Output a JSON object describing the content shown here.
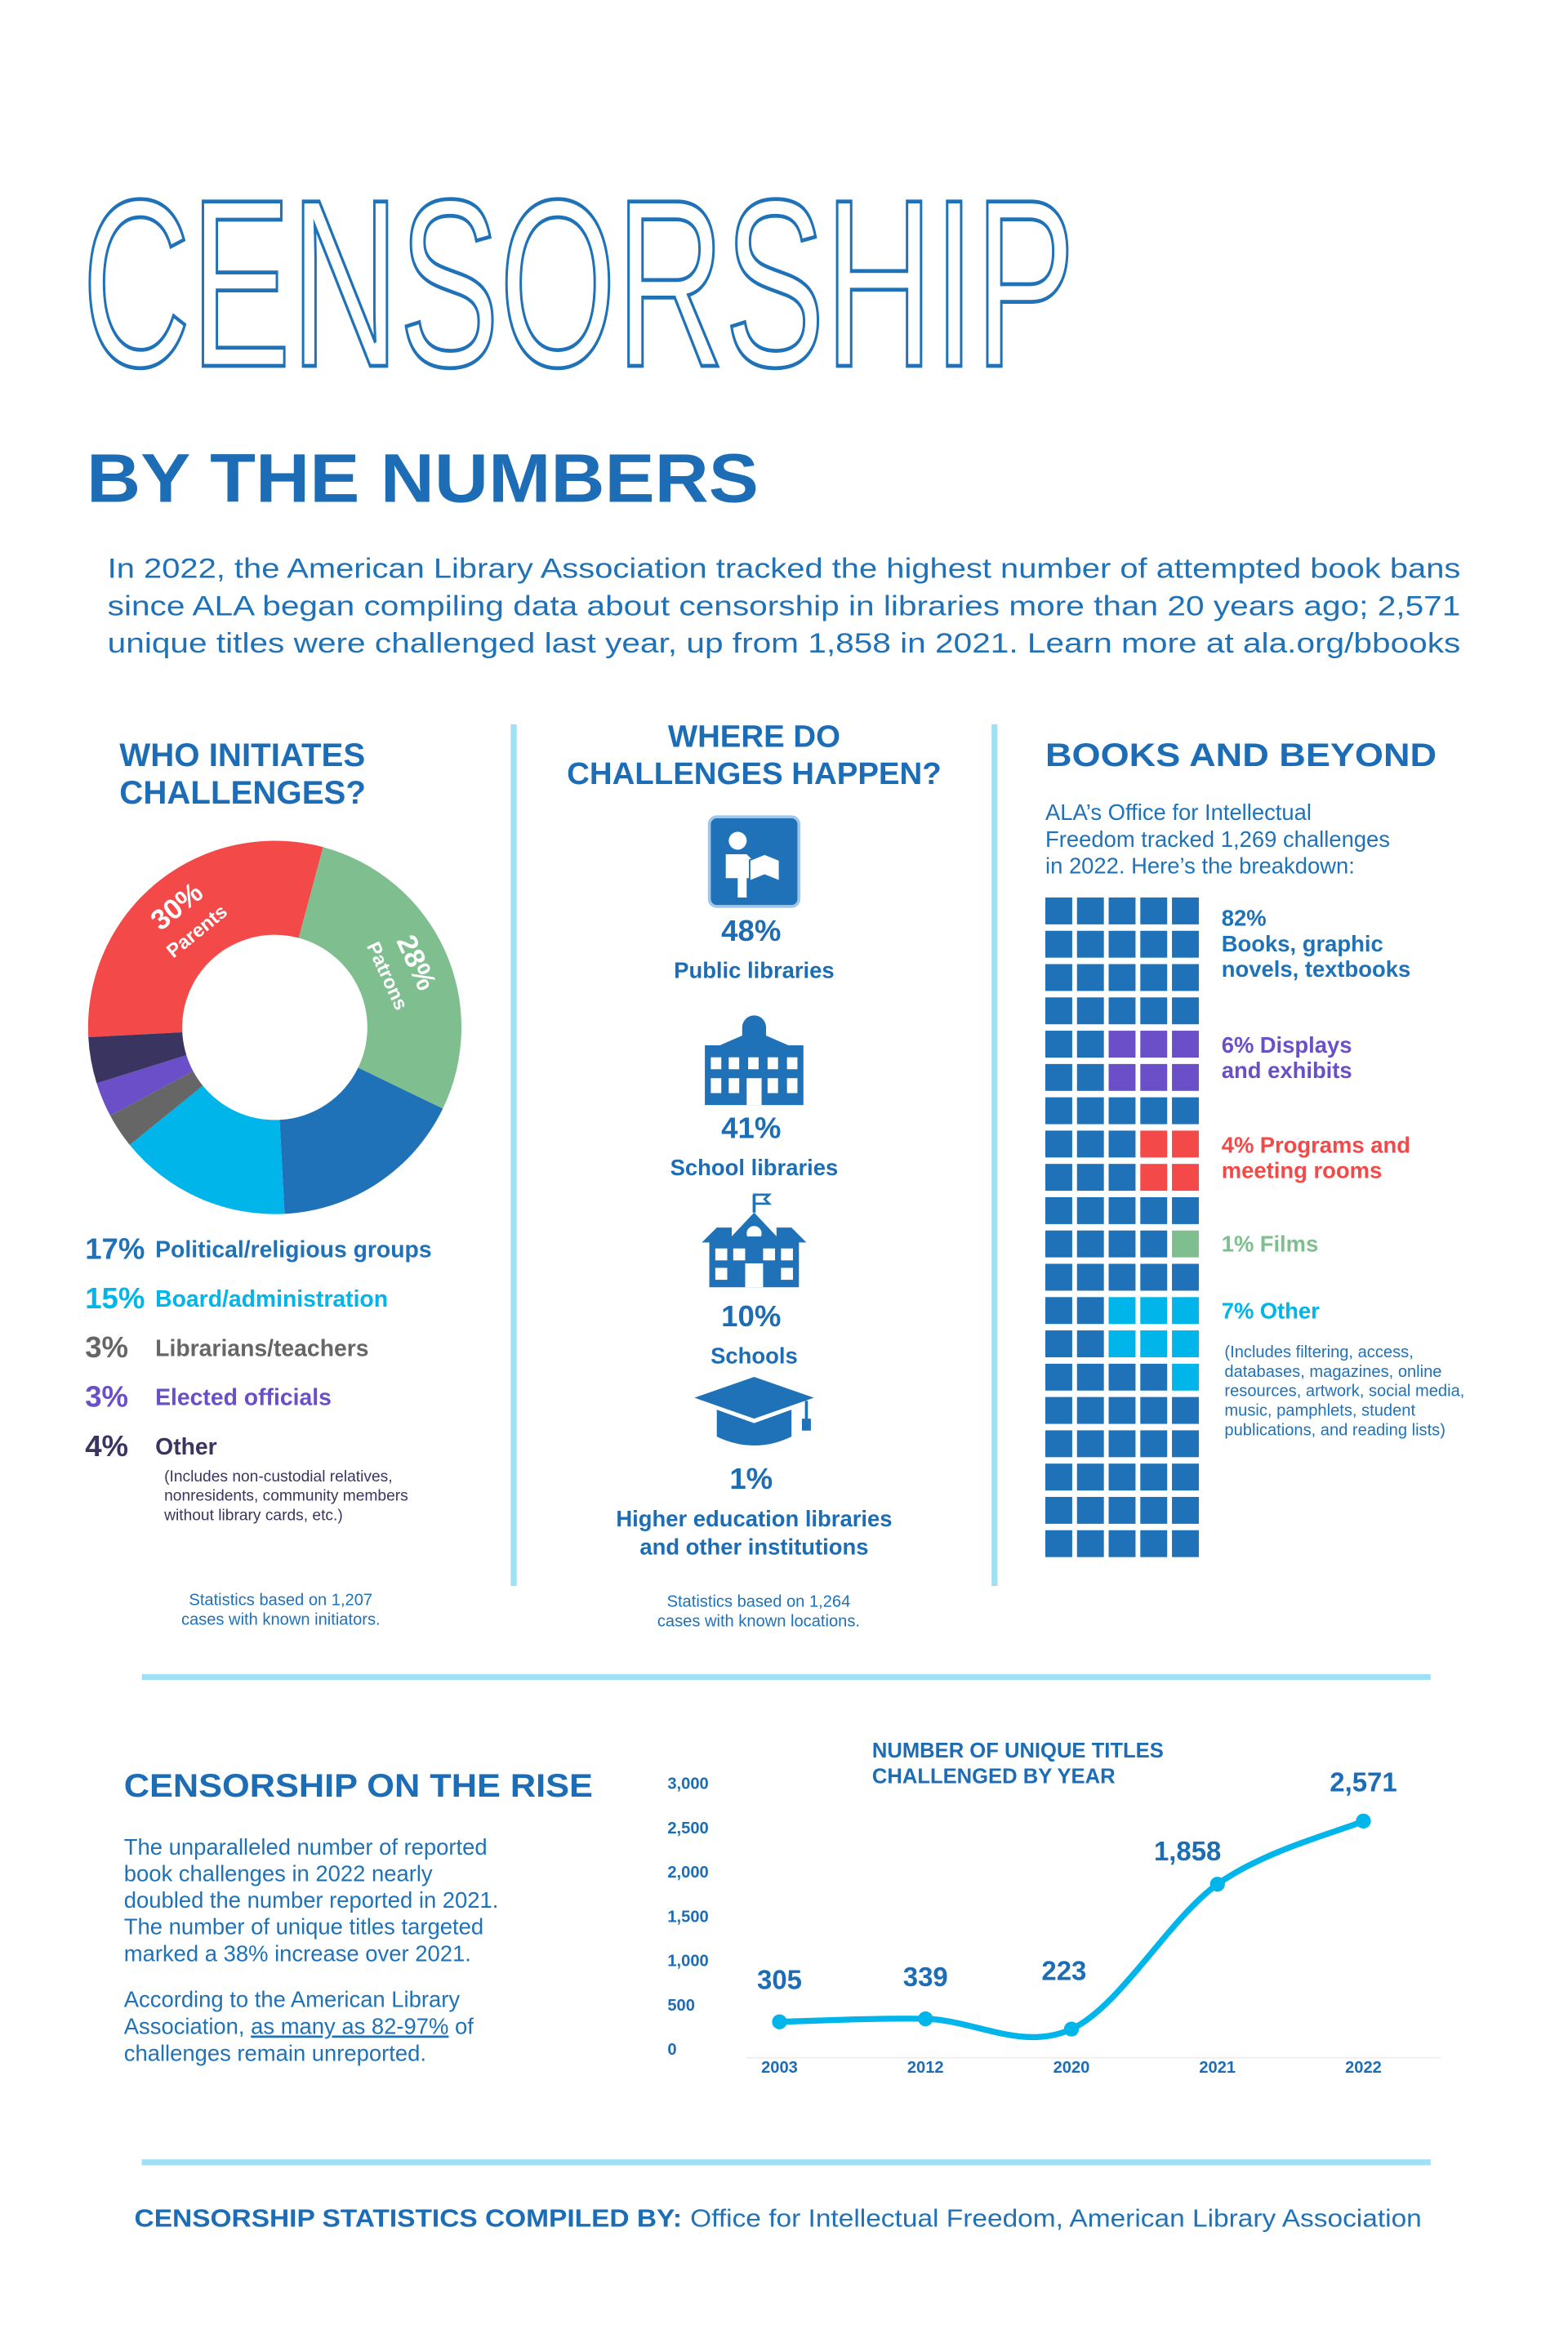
{
  "header": {
    "title": "CENSORSHIP",
    "subtitle": "BY THE NUMBERS",
    "intro": [
      "In 2022, the American Library Association tracked the highest number of attempted book bans",
      "since ALA began compiling data about censorship in libraries more than 20 years ago; 2,571",
      "unique titles were challenged last year, up from 1,858 in 2021. Learn more at ala.org/bbooks"
    ]
  },
  "chart_data": [
    {
      "type": "pie",
      "title": [
        "WHO INITIATES",
        "CHALLENGES?"
      ],
      "categories": [
        "Parents",
        "Patrons",
        "Political/religious groups",
        "Board/administration",
        "Librarians/teachers",
        "Elected officials",
        "Other"
      ],
      "values": [
        30,
        28,
        17,
        15,
        3,
        3,
        4
      ],
      "value_labels": [
        "30%",
        "28%",
        "17%",
        "15%",
        "3%",
        "3%",
        "4%"
      ],
      "colors": [
        "#f44949",
        "#7fbf8f",
        "#1f72b8",
        "#00b5ea",
        "#666666",
        "#6a4fc8",
        "#3a3560"
      ],
      "note": [
        "(Includes non-custodial relatives,",
        "nonresidents, community members",
        "without library cards, etc.)"
      ],
      "source": [
        "Statistics based on 1,207",
        "cases with known initiators."
      ]
    },
    {
      "type": "waffle",
      "title": "BOOKS AND BEYOND",
      "description": [
        "ALA’s Office for Intellectual",
        "Freedom tracked 1,269 challenges",
        "in 2022. Here’s the breakdown:"
      ],
      "series": [
        {
          "name": [
            "Books, graphic",
            "novels, textbooks"
          ],
          "color": "#1f72b8",
          "values": [
            82
          ],
          "value_labels": [
            "82%"
          ]
        },
        {
          "name": [
            "Displays",
            "and exhibits"
          ],
          "color": "#6a4fc8",
          "values": [
            6
          ],
          "value_labels": [
            "6%"
          ]
        },
        {
          "name": [
            "Programs and",
            "meeting rooms"
          ],
          "color": "#f44949",
          "values": [
            4
          ],
          "value_labels": [
            "4%"
          ]
        },
        {
          "name": [
            "Films"
          ],
          "color": "#7fbf8f",
          "values": [
            1
          ],
          "value_labels": [
            "1%"
          ]
        },
        {
          "name": [
            "Other"
          ],
          "color": "#00b5ea",
          "values": [
            7
          ],
          "value_labels": [
            "7%"
          ]
        }
      ],
      "note": [
        "(Includes filtering, access,",
        "databases, magazines, online",
        "resources, artwork, social media,",
        "music, pamphlets, student",
        "publications, and reading lists)"
      ]
    },
    {
      "type": "line",
      "title": [
        "NUMBER OF UNIQUE TITLES",
        "CHALLENGED BY YEAR"
      ],
      "categories": [
        "2003",
        "2012",
        "2020",
        "2021",
        "2022"
      ],
      "values": [
        305,
        339,
        223,
        1858,
        2571
      ],
      "value_labels": [
        "305",
        "339",
        "223",
        "1,858",
        "2,571"
      ],
      "color": "#00b5ea",
      "ylim": [
        0,
        3000
      ],
      "yticks": [
        0,
        500,
        {
          "value": 1000,
          "label": "1,000"
        },
        {
          "value": 1500,
          "label": "1,500"
        },
        {
          "value": 2000,
          "label": "2,000"
        },
        {
          "value": 2500,
          "label": "2,500"
        },
        {
          "value": 3000,
          "label": "3,000"
        }
      ]
    }
  ],
  "where": {
    "title": [
      "WHERE DO",
      "CHALLENGES HAPPEN?"
    ],
    "items": [
      {
        "percent": "48%",
        "label": [
          "Public libraries"
        ]
      },
      {
        "percent": "41%",
        "label": [
          "School libraries"
        ]
      },
      {
        "percent": "10%",
        "label": [
          "Schools"
        ]
      },
      {
        "percent": "1%",
        "label": [
          "Higher education libraries",
          "and other institutions"
        ]
      }
    ],
    "source": [
      "Statistics based on 1,264",
      "cases with known locations."
    ]
  },
  "rise": {
    "title": "CENSORSHIP ON THE RISE",
    "paragraph1": [
      "The unparalleled number of reported",
      "book challenges in 2022 nearly",
      "doubled the number reported in 2021.",
      "The number of unique titles targeted",
      "marked a 38% increase over 2021."
    ],
    "paragraph2": {
      "line1": "According to the American Library",
      "line2_before": "Association, ",
      "link": "as many as 82-97%",
      "line2_after": " of",
      "line3": "challenges remain unreported."
    }
  },
  "footer": {
    "label": "CENSORSHIP STATISTICS COMPILED BY:",
    "text": "Office for Intellectual Freedom, American Library Association"
  }
}
